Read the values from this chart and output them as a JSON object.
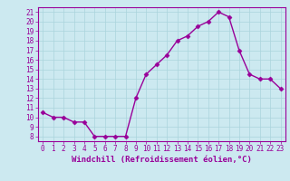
{
  "x": [
    0,
    1,
    2,
    3,
    4,
    5,
    6,
    7,
    8,
    9,
    10,
    11,
    12,
    13,
    14,
    15,
    16,
    17,
    18,
    19,
    20,
    21,
    22,
    23
  ],
  "y": [
    10.5,
    10.0,
    10.0,
    9.5,
    9.5,
    8.0,
    8.0,
    8.0,
    8.0,
    12.0,
    14.5,
    15.5,
    16.5,
    18.0,
    18.5,
    19.5,
    20.0,
    21.0,
    20.5,
    17.0,
    14.5,
    14.0,
    14.0,
    13.0
  ],
  "line_color": "#990099",
  "marker": "D",
  "marker_size": 2.5,
  "xlabel": "Windchill (Refroidissement éolien,°C)",
  "xlabel_color": "#990099",
  "ylabel_ticks": [
    8,
    9,
    10,
    11,
    12,
    13,
    14,
    15,
    16,
    17,
    18,
    19,
    20,
    21
  ],
  "xlim": [
    -0.5,
    23.5
  ],
  "ylim": [
    7.5,
    21.5
  ],
  "bg_color": "#cce9f0",
  "grid_color": "#aad4dc",
  "tick_color": "#990099",
  "spine_color": "#990099",
  "xlabel_fontsize": 6.5,
  "tick_fontsize": 5.5,
  "linewidth": 1.0
}
